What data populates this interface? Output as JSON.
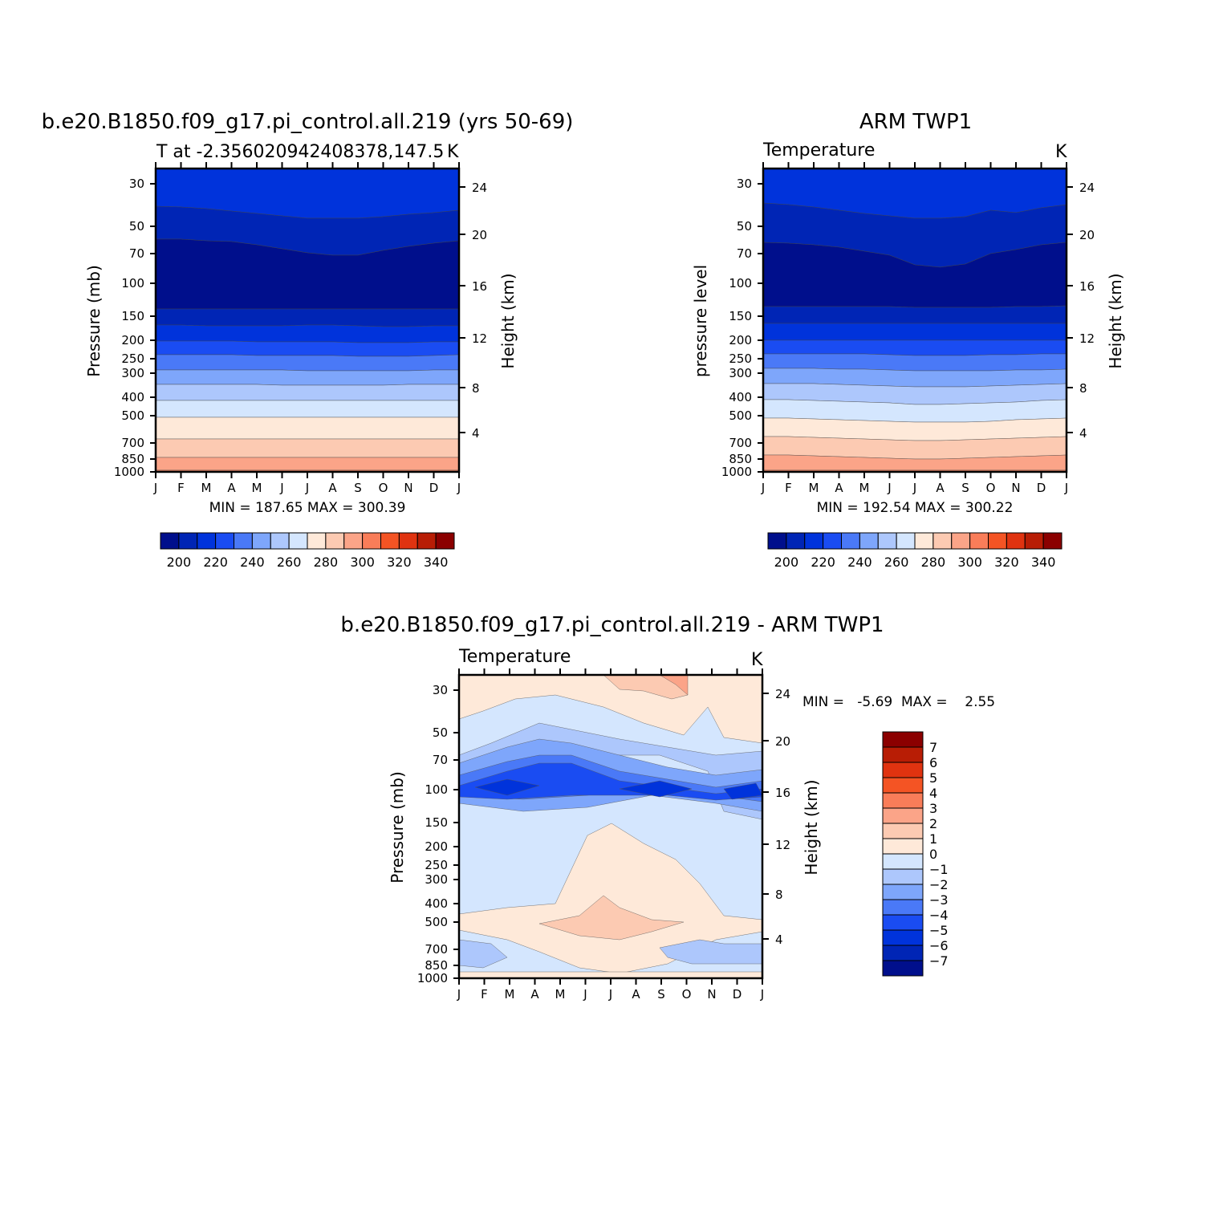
{
  "colors": {
    "abs_palette": [
      "#000f8c",
      "#0025b5",
      "#0033db",
      "#1a4cf2",
      "#4a79f7",
      "#7ea6fb",
      "#adc7fc",
      "#d4e6fe",
      "#fee9d9",
      "#fccab2",
      "#fba488",
      "#f97d59",
      "#f45424",
      "#e03310",
      "#b81d05",
      "#8b0000"
    ],
    "diff_palette": [
      "#000f8c",
      "#0025b5",
      "#0033db",
      "#1a4cf2",
      "#4a79f7",
      "#7ea6fb",
      "#adc7fc",
      "#d4e6fe",
      "#fee9d9",
      "#fccab2",
      "#fba488",
      "#f97d59",
      "#f45424",
      "#e03310",
      "#b81d05",
      "#8b0000"
    ]
  },
  "chart_data": [
    {
      "type": "heatmap",
      "title": "b.e20.B1850.f09_g17.pi_control.all.219 (yrs 50-69)",
      "subtitle": "T at -2.356020942408378,147.5",
      "units": "K",
      "ylabel": "Pressure (mb)",
      "ylabel_right": "Height (km)",
      "x_ticks": [
        "J",
        "F",
        "M",
        "A",
        "M",
        "J",
        "J",
        "A",
        "S",
        "O",
        "N",
        "D",
        "J"
      ],
      "y_ticks": [
        "30",
        "50",
        "70",
        "100",
        "150",
        "200",
        "250",
        "300",
        "400",
        "500",
        "700",
        "850",
        "1000"
      ],
      "y_ticks_right": [
        "24",
        "20",
        "16",
        "12",
        "8",
        "4"
      ],
      "minmax_text": "MIN = 187.65  MAX = 300.39",
      "colorbar_labels": [
        "200",
        "220",
        "240",
        "260",
        "280",
        "300",
        "320",
        "340"
      ],
      "colorbar_levels": [
        190,
        200,
        210,
        220,
        230,
        240,
        250,
        260,
        270,
        280,
        290,
        300,
        310,
        320,
        330,
        340
      ],
      "bands_top_to_bottom": [
        {
          "level_index": 2,
          "description": "30-45 mb",
          "value_range": [
            210,
            220
          ]
        },
        {
          "level_index": 1,
          "description": "45-65 mb",
          "value_range": [
            200,
            210
          ]
        },
        {
          "level_index": 0,
          "description": "65-140 mb",
          "value_range": [
            190,
            200
          ]
        },
        {
          "level_index": 1,
          "description": "140-170 mb",
          "value_range": [
            200,
            210
          ]
        },
        {
          "level_index": 2,
          "description": "170-210 mb",
          "value_range": [
            210,
            220
          ]
        },
        {
          "level_index": 3,
          "description": "210-260 mb",
          "value_range": [
            220,
            230
          ]
        },
        {
          "level_index": 4,
          "description": "260-330 mb",
          "value_range": [
            230,
            240
          ]
        },
        {
          "level_index": 5,
          "description": "330-420 mb",
          "value_range": [
            240,
            250
          ]
        },
        {
          "level_index": 6,
          "description": "420-530 mb",
          "value_range": [
            250,
            260
          ]
        },
        {
          "level_index": 7,
          "description": "530-700 mb",
          "value_range": [
            260,
            270
          ]
        },
        {
          "level_index": 8,
          "description": "700-850 mb",
          "value_range": [
            270,
            280
          ]
        },
        {
          "level_index": 9,
          "description": "850-980 mb",
          "value_range": [
            280,
            290
          ]
        },
        {
          "level_index": 10,
          "description": "980-1000 mb",
          "value_range": [
            290,
            300
          ]
        }
      ]
    },
    {
      "type": "heatmap",
      "title": "ARM TWP1",
      "subtitle": "Temperature",
      "units": "K",
      "ylabel": "pressure level",
      "ylabel_right": "Height (km)",
      "x_ticks": [
        "J",
        "F",
        "M",
        "A",
        "M",
        "J",
        "J",
        "A",
        "S",
        "O",
        "N",
        "D",
        "J"
      ],
      "y_ticks": [
        "30",
        "50",
        "70",
        "100",
        "150",
        "200",
        "250",
        "300",
        "400",
        "500",
        "700",
        "850",
        "1000"
      ],
      "y_ticks_right": [
        "24",
        "20",
        "16",
        "12",
        "8",
        "4"
      ],
      "minmax_text": "MIN = 192.54  MAX = 300.22",
      "colorbar_labels": [
        "200",
        "220",
        "240",
        "260",
        "280",
        "300",
        "320",
        "340"
      ],
      "colorbar_levels": [
        190,
        200,
        210,
        220,
        230,
        240,
        250,
        260,
        270,
        280,
        290,
        300,
        310,
        320,
        330,
        340
      ]
    },
    {
      "type": "heatmap",
      "title": "b.e20.B1850.f09_g17.pi_control.all.219 - ARM TWP1",
      "subtitle": "Temperature",
      "units": "K",
      "ylabel": "Pressure (mb)",
      "ylabel_right": "Height (km)",
      "x_ticks": [
        "J",
        "F",
        "M",
        "A",
        "M",
        "J",
        "J",
        "A",
        "S",
        "O",
        "N",
        "D",
        "J"
      ],
      "y_ticks": [
        "30",
        "50",
        "70",
        "100",
        "150",
        "200",
        "250",
        "300",
        "400",
        "500",
        "700",
        "850",
        "1000"
      ],
      "y_ticks_right": [
        "24",
        "20",
        "16",
        "12",
        "8",
        "4"
      ],
      "minmax_text": "MIN =   -5.69  MAX =    2.55",
      "colorbar_labels": [
        "7",
        "6",
        "5",
        "4",
        "3",
        "2",
        "1",
        "0",
        "-1",
        "-2",
        "-3",
        "-4",
        "-5",
        "-6",
        "-7"
      ],
      "colorbar_levels": [
        -7,
        -6,
        -5,
        -4,
        -3,
        -2,
        -1,
        0,
        1,
        2,
        3,
        4,
        5,
        6,
        7
      ]
    }
  ]
}
